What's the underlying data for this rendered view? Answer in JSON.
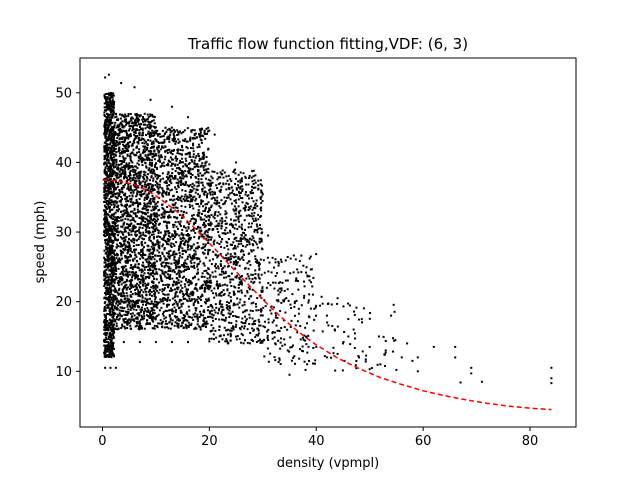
{
  "chart_data": {
    "type": "scatter",
    "title": "Traffic flow function fitting,VDF: (6, 3)",
    "xlabel": "density (vpmpl)",
    "ylabel": "speed (mph)",
    "xlim": [
      -4.2,
      88.6
    ],
    "ylim": [
      2.0,
      55.0
    ],
    "xticks": [
      0,
      20,
      40,
      60,
      80
    ],
    "yticks": [
      10,
      20,
      30,
      40,
      50
    ],
    "grid": false,
    "scatter_color": "#000000",
    "fit_color": "#ff0000",
    "fit_style": "dashed",
    "scatter_clusters": [
      {
        "x": [
          0.3,
          2.2
        ],
        "y": [
          12.0,
          50.0
        ],
        "count": 1200
      },
      {
        "x": [
          2.2,
          10
        ],
        "y": [
          16.0,
          47.0
        ],
        "count": 1800
      },
      {
        "x": [
          10,
          20
        ],
        "y": [
          16.0,
          45.0
        ],
        "count": 1400
      },
      {
        "x": [
          20,
          30
        ],
        "y": [
          14.0,
          39.0
        ],
        "count": 800
      },
      {
        "x": [
          30,
          40
        ],
        "y": [
          11.0,
          27.0
        ],
        "count": 200
      },
      {
        "x": [
          40,
          55
        ],
        "y": [
          10.0,
          20.0
        ],
        "count": 60
      }
    ],
    "scatter_points": [
      {
        "x": 0.5,
        "y": 52.2
      },
      {
        "x": 1.2,
        "y": 52.6
      },
      {
        "x": 3.5,
        "y": 51.4
      },
      {
        "x": 6,
        "y": 50.8
      },
      {
        "x": 0.5,
        "y": 10.5
      },
      {
        "x": 1.5,
        "y": 10.5
      },
      {
        "x": 2.5,
        "y": 10.5
      },
      {
        "x": 1,
        "y": 14.2
      },
      {
        "x": 4,
        "y": 14.2
      },
      {
        "x": 7,
        "y": 14.2
      },
      {
        "x": 10,
        "y": 14.2
      },
      {
        "x": 13,
        "y": 14.2
      },
      {
        "x": 16,
        "y": 14.2
      },
      {
        "x": 20,
        "y": 14.3
      },
      {
        "x": 24,
        "y": 14.4
      },
      {
        "x": 28,
        "y": 14.5
      },
      {
        "x": 31,
        "y": 14.5
      },
      {
        "x": 34,
        "y": 14.6
      },
      {
        "x": 35,
        "y": 9.5
      },
      {
        "x": 38,
        "y": 10.2
      },
      {
        "x": 42,
        "y": 12.0
      },
      {
        "x": 45,
        "y": 14.0
      },
      {
        "x": 47,
        "y": 16.0
      },
      {
        "x": 48,
        "y": 12.0
      },
      {
        "x": 50,
        "y": 13.5
      },
      {
        "x": 50,
        "y": 10.3
      },
      {
        "x": 52,
        "y": 11.0
      },
      {
        "x": 53,
        "y": 13.0
      },
      {
        "x": 54,
        "y": 18.0
      },
      {
        "x": 55,
        "y": 10.2
      },
      {
        "x": 56,
        "y": 12.0
      },
      {
        "x": 57,
        "y": 14.0
      },
      {
        "x": 58,
        "y": 11.5
      },
      {
        "x": 59,
        "y": 12.0
      },
      {
        "x": 59,
        "y": 10.0
      },
      {
        "x": 62,
        "y": 13.5
      },
      {
        "x": 66,
        "y": 13.5
      },
      {
        "x": 66,
        "y": 12.0
      },
      {
        "x": 67,
        "y": 8.4
      },
      {
        "x": 69,
        "y": 9.7
      },
      {
        "x": 69,
        "y": 10.5
      },
      {
        "x": 71,
        "y": 8.5
      },
      {
        "x": 84,
        "y": 10.5
      },
      {
        "x": 84,
        "y": 9.0
      },
      {
        "x": 84,
        "y": 8.3
      },
      {
        "x": 36,
        "y": 20.0
      },
      {
        "x": 39,
        "y": 19.0
      },
      {
        "x": 41,
        "y": 20.7
      },
      {
        "x": 42,
        "y": 18.0
      },
      {
        "x": 43,
        "y": 16.5
      },
      {
        "x": 44,
        "y": 20.5
      },
      {
        "x": 46,
        "y": 17.5
      },
      {
        "x": 46,
        "y": 15.0
      },
      {
        "x": 44,
        "y": 12.5
      },
      {
        "x": 40,
        "y": 13.5
      },
      {
        "x": 37,
        "y": 16.5
      },
      {
        "x": 33,
        "y": 25.5
      },
      {
        "x": 31,
        "y": 29.5
      },
      {
        "x": 28,
        "y": 36.0
      },
      {
        "x": 25,
        "y": 40.0
      },
      {
        "x": 21,
        "y": 44.0
      },
      {
        "x": 16,
        "y": 46.5
      },
      {
        "x": 13,
        "y": 48.0
      },
      {
        "x": 9,
        "y": 49.0
      }
    ],
    "fit_curve": {
      "x": [
        0,
        2,
        4,
        6,
        8,
        10,
        12,
        14,
        16,
        18,
        20,
        22,
        24,
        26,
        28,
        30,
        32,
        34,
        36,
        38,
        40,
        44,
        48,
        52,
        56,
        60,
        64,
        68,
        72,
        76,
        80,
        84
      ],
      "y": [
        37.5,
        37.4,
        37.2,
        36.8,
        36.1,
        35.2,
        34.1,
        32.9,
        31.5,
        30.0,
        28.4,
        26.8,
        25.1,
        23.5,
        21.9,
        20.3,
        18.8,
        17.4,
        16.1,
        14.9,
        13.8,
        11.9,
        10.4,
        9.1,
        8.1,
        7.2,
        6.5,
        5.9,
        5.4,
        5.0,
        4.7,
        4.5
      ]
    }
  }
}
